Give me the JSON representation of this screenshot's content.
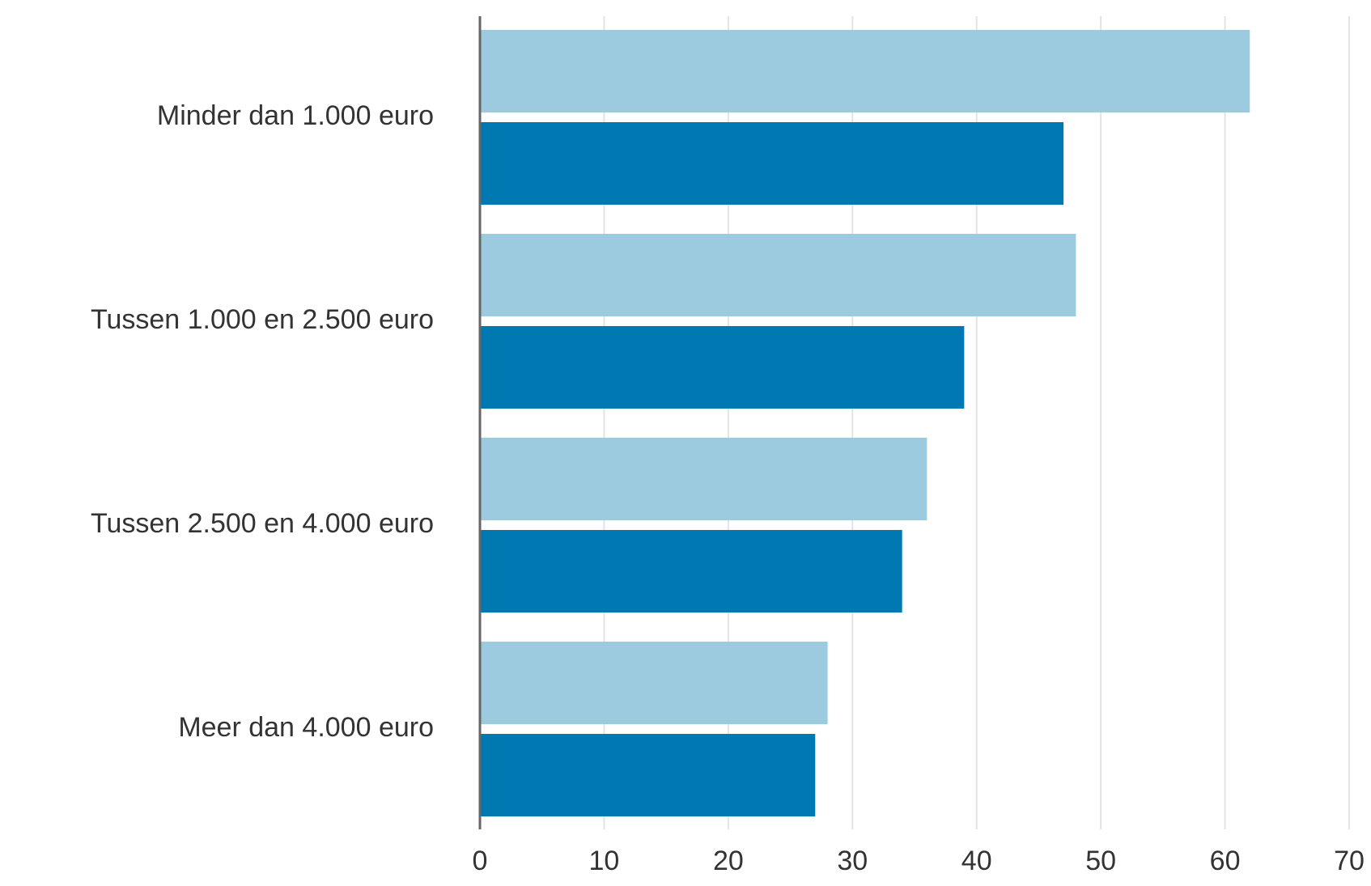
{
  "chart_data": {
    "type": "bar",
    "orientation": "horizontal",
    "categories": [
      "Minder dan 1.000 euro",
      "Tussen 1.000 en 2.500 euro",
      "Tussen 2.500 en 4.000 euro",
      "Meer dan 4.000 euro"
    ],
    "series": [
      {
        "color": "#9ccbe0",
        "values": [
          62,
          48,
          36,
          28
        ]
      },
      {
        "color": "#0079b2",
        "values": [
          47,
          39,
          34,
          27
        ]
      }
    ],
    "xlim": [
      0,
      70
    ],
    "xticks": [
      0,
      10,
      20,
      30,
      40,
      50,
      60,
      70
    ],
    "grid": true,
    "legend": "none"
  }
}
